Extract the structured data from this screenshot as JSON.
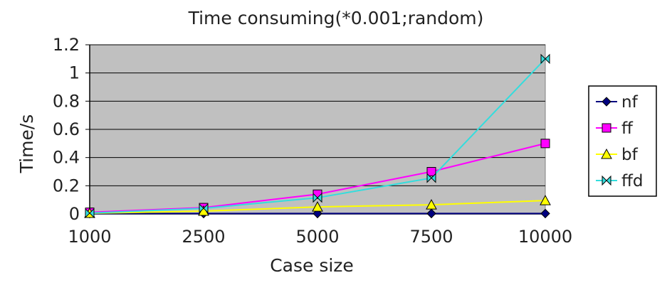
{
  "chart_data": {
    "type": "line",
    "title": "Time consuming(*0.001;random)",
    "xlabel": "Case size",
    "ylabel": "Time/s",
    "categories": [
      "1000",
      "2500",
      "5000",
      "7500",
      "10000"
    ],
    "yticks": [
      "0",
      "0.2",
      "0.4",
      "0.6",
      "0.8",
      "1",
      "1.2"
    ],
    "ylim": [
      0,
      1.2
    ],
    "grid": "horizontal",
    "plot_background": "#c0c0c0",
    "legend_position": "right",
    "series": [
      {
        "name": "nf",
        "values": [
          0.003,
          0.003,
          0.003,
          0.003,
          0.003
        ],
        "color": "#000080",
        "marker": "diamond"
      },
      {
        "name": "ff",
        "values": [
          0.012,
          0.045,
          0.14,
          0.3,
          0.5
        ],
        "color": "#ff00ff",
        "marker": "square"
      },
      {
        "name": "bf",
        "values": [
          0.005,
          0.02,
          0.05,
          0.065,
          0.095
        ],
        "color": "#ffff00",
        "marker": "triangle"
      },
      {
        "name": "ffd",
        "values": [
          0.006,
          0.04,
          0.115,
          0.255,
          1.1
        ],
        "color": "#33dddd",
        "marker": "bowtie"
      }
    ]
  }
}
